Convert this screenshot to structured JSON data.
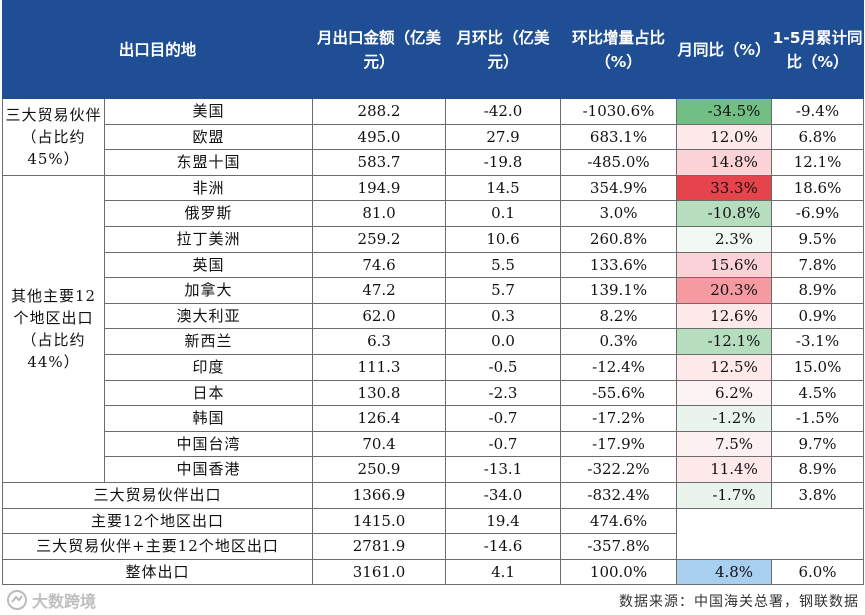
{
  "header": {
    "destination": "出口目的地",
    "amount": "月出口金额（亿美元）",
    "mom": "月环比（亿美元）",
    "mom_share": "环比增量占比（%）",
    "yoy": "月同比（%）",
    "ytd_yoy": "1-5月累计同比（%）"
  },
  "groups": {
    "big3": "三大贸易伙伴（占比约45%）",
    "other12": "其他主要12个地区出口（占比约44%）"
  },
  "colors": {
    "header_bg": "#1f4e94",
    "red_strong": "#e5444d",
    "red_mid": "#f49aa0",
    "red_light": "#fbd3d6",
    "red_faint": "#fde9ea",
    "green_mid": "#72bf84",
    "green_light": "#b7ddbf",
    "green_faint": "#d9eedd",
    "blue_light": "#a9cff0"
  },
  "rows": [
    {
      "name": "美国",
      "amount": "288.2",
      "mom": "-42.0",
      "share": "-1030.6%",
      "yoy": "-34.5%",
      "ytd": "-9.4%",
      "yoy_color": "#72bf84"
    },
    {
      "name": "欧盟",
      "amount": "495.0",
      "mom": "27.9",
      "share": "683.1%",
      "yoy": "12.0%",
      "ytd": "6.8%",
      "yoy_color": "#fde9ea"
    },
    {
      "name": "东盟十国",
      "amount": "583.7",
      "mom": "-19.8",
      "share": "-485.0%",
      "yoy": "14.8%",
      "ytd": "12.1%",
      "yoy_color": "#fbd3d6"
    },
    {
      "name": "非洲",
      "amount": "194.9",
      "mom": "14.5",
      "share": "354.9%",
      "yoy": "33.3%",
      "ytd": "18.6%",
      "yoy_color": "#e5444d"
    },
    {
      "name": "俄罗斯",
      "amount": "81.0",
      "mom": "0.1",
      "share": "3.0%",
      "yoy": "-10.8%",
      "ytd": "-6.9%",
      "yoy_color": "#b7ddbf"
    },
    {
      "name": "拉丁美洲",
      "amount": "259.2",
      "mom": "10.6",
      "share": "260.8%",
      "yoy": "2.3%",
      "ytd": "9.5%",
      "yoy_color": "#f2f8f3"
    },
    {
      "name": "英国",
      "amount": "74.6",
      "mom": "5.5",
      "share": "133.6%",
      "yoy": "15.6%",
      "ytd": "7.8%",
      "yoy_color": "#fbd3d6"
    },
    {
      "name": "加拿大",
      "amount": "47.2",
      "mom": "5.7",
      "share": "139.1%",
      "yoy": "20.3%",
      "ytd": "8.9%",
      "yoy_color": "#f49aa0"
    },
    {
      "name": "澳大利亚",
      "amount": "62.0",
      "mom": "0.3",
      "share": "8.2%",
      "yoy": "12.6%",
      "ytd": "0.9%",
      "yoy_color": "#fde9ea"
    },
    {
      "name": "新西兰",
      "amount": "6.3",
      "mom": "0.0",
      "share": "0.3%",
      "yoy": "-12.1%",
      "ytd": "-3.1%",
      "yoy_color": "#b7ddbf"
    },
    {
      "name": "印度",
      "amount": "111.3",
      "mom": "-0.5",
      "share": "-12.4%",
      "yoy": "12.5%",
      "ytd": "15.0%",
      "yoy_color": "#fde9ea"
    },
    {
      "name": "日本",
      "amount": "130.8",
      "mom": "-2.3",
      "share": "-55.6%",
      "yoy": "6.2%",
      "ytd": "4.5%",
      "yoy_color": "#fdf3f4"
    },
    {
      "name": "韩国",
      "amount": "126.4",
      "mom": "-0.7",
      "share": "-17.2%",
      "yoy": "-1.2%",
      "ytd": "-1.5%",
      "yoy_color": "#e9f5ec"
    },
    {
      "name": "中国台湾",
      "amount": "70.4",
      "mom": "-0.7",
      "share": "-17.9%",
      "yoy": "7.5%",
      "ytd": "9.7%",
      "yoy_color": "#fdf0f1"
    },
    {
      "name": "中国香港",
      "amount": "250.9",
      "mom": "-13.1",
      "share": "-322.2%",
      "yoy": "11.4%",
      "ytd": "8.9%",
      "yoy_color": "#fde9ea"
    }
  ],
  "totals": [
    {
      "name": "三大贸易伙伴出口",
      "amount": "1366.9",
      "mom": "-34.0",
      "share": "-832.4%",
      "yoy": "-1.7%",
      "ytd": "3.8%",
      "yoy_color": "#e9f5ec"
    },
    {
      "name": "主要12个地区出口",
      "amount": "1415.0",
      "mom": "19.4",
      "share": "474.6%",
      "yoy": "",
      "ytd": "",
      "yoy_color": "#ffffff"
    },
    {
      "name": "三大贸易伙伴+主要12个地区出口",
      "amount": "2781.9",
      "mom": "-14.6",
      "share": "-357.8%",
      "yoy": "",
      "ytd": "",
      "yoy_color": "#ffffff"
    },
    {
      "name": "整体出口",
      "amount": "3161.0",
      "mom": "4.1",
      "share": "100.0%",
      "yoy": "4.8%",
      "ytd": "6.0%",
      "yoy_color": "#a9cff0"
    }
  ],
  "source": "数据来源：中国海关总署，钢联数据",
  "watermark": "大数跨境",
  "watermark_icon": "brand-logo-icon"
}
